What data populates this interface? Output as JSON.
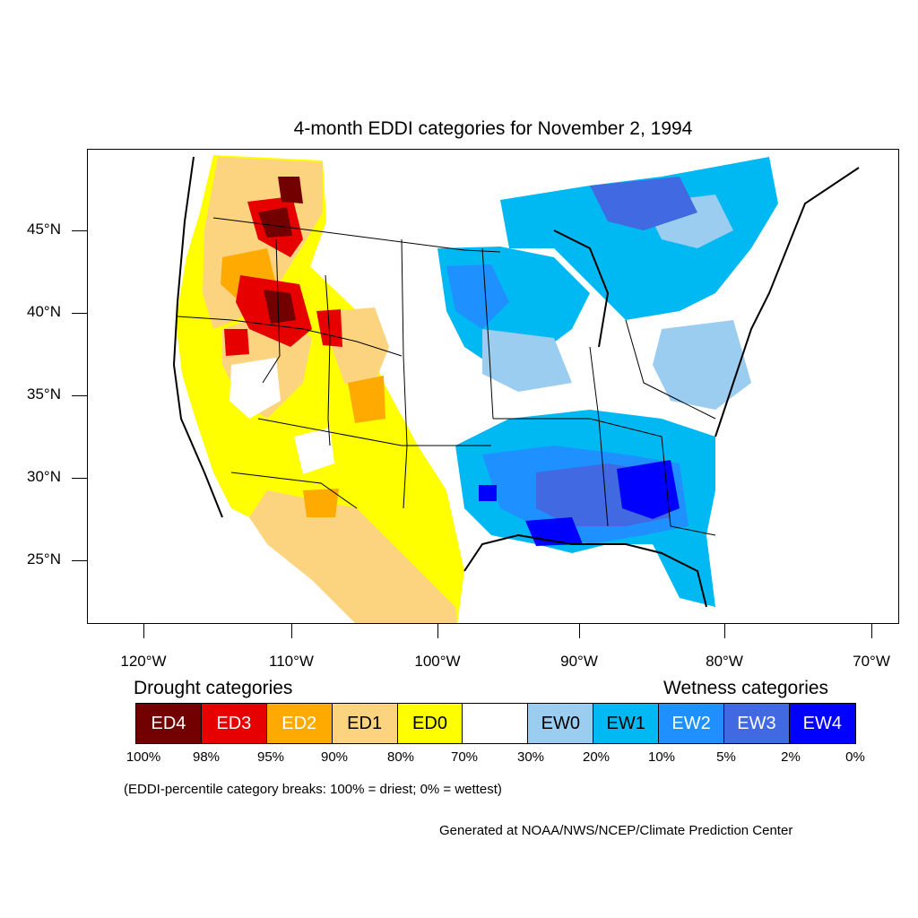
{
  "title": "4-month EDDI categories for November 2, 1994",
  "map": {
    "lat_labels": [
      "45°N",
      "40°N",
      "35°N",
      "30°N",
      "25°N"
    ],
    "lat_values": [
      45,
      40,
      35,
      30,
      25
    ],
    "lon_labels": [
      "120°W",
      "110°W",
      "100°W",
      "90°W",
      "80°W",
      "70°W"
    ],
    "lon_values": [
      -120,
      -110,
      -100,
      -90,
      -80,
      -70
    ],
    "extent": {
      "lon_min": -124,
      "lon_max": -69,
      "lat_min": 21,
      "lat_max": 50
    }
  },
  "legend": {
    "drought_heading": "Drought categories",
    "wetness_heading": "Wetness categories",
    "categories": [
      {
        "label": "ED4",
        "color": "#730000",
        "text_color": "#ffffff"
      },
      {
        "label": "ED3",
        "color": "#e60000",
        "text_color": "#ffffff"
      },
      {
        "label": "ED2",
        "color": "#ffaa00",
        "text_color": "#ffffff"
      },
      {
        "label": "ED1",
        "color": "#fcd37f",
        "text_color": "#000000"
      },
      {
        "label": "ED0",
        "color": "#ffff00",
        "text_color": "#000000"
      },
      {
        "label": "",
        "color": "#ffffff",
        "text_color": "#000000"
      },
      {
        "label": "EW0",
        "color": "#9bcdf0",
        "text_color": "#000000"
      },
      {
        "label": "EW1",
        "color": "#00b9f2",
        "text_color": "#000000"
      },
      {
        "label": "EW2",
        "color": "#1e90ff",
        "text_color": "#ffffff"
      },
      {
        "label": "EW3",
        "color": "#4169e1",
        "text_color": "#ffffff"
      },
      {
        "label": "EW4",
        "color": "#0000ff",
        "text_color": "#ffffff"
      }
    ],
    "breaks": [
      "100%",
      "98%",
      "95%",
      "90%",
      "80%",
      "70%",
      "30%",
      "20%",
      "10%",
      "5%",
      "2%",
      "0%"
    ],
    "note": "(EDDI-percentile category breaks: 100% = driest; 0% = wettest)"
  },
  "credit": "Generated at NOAA/NWS/NCEP/Climate Prediction Center"
}
